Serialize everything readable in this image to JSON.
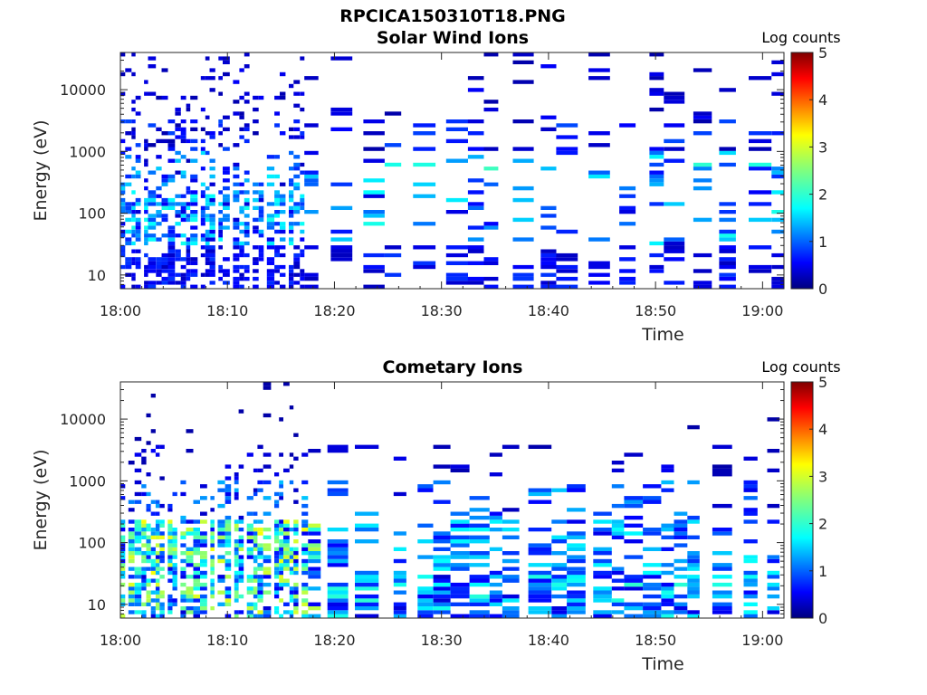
{
  "figure": {
    "title": "RPCICA150310T18.PNG"
  },
  "colors": {
    "axis": "#262626",
    "colormap": [
      "#00007f",
      "#0000ff",
      "#007fff",
      "#00ffff",
      "#7fff7f",
      "#ffff00",
      "#ff7f00",
      "#ff0000",
      "#7f0000"
    ]
  },
  "chart_data": [
    {
      "type": "heatmap",
      "title": "Solar Wind Ions",
      "xlabel": "Time",
      "ylabel": "Energy (eV)",
      "x_ticks": [
        "18:00",
        "18:10",
        "18:20",
        "18:30",
        "18:40",
        "18:50",
        "19:00"
      ],
      "y_ticks": [
        "10",
        "100",
        "1000",
        "10000"
      ],
      "y_scale": "log",
      "ylim": [
        6,
        40000
      ],
      "xlim": [
        "18:00",
        "19:02"
      ],
      "colorbar": {
        "title": "Log counts",
        "range": [
          0,
          5
        ],
        "ticks": [
          "0",
          "1",
          "2",
          "3",
          "4",
          "5"
        ]
      },
      "seed": 7,
      "profile": "solar"
    },
    {
      "type": "heatmap",
      "title": "Cometary Ions",
      "xlabel": "Time",
      "ylabel": "Energy (eV)",
      "x_ticks": [
        "18:00",
        "18:10",
        "18:20",
        "18:30",
        "18:40",
        "18:50",
        "19:00"
      ],
      "y_ticks": [
        "10",
        "100",
        "1000",
        "10000"
      ],
      "y_scale": "log",
      "ylim": [
        6,
        40000
      ],
      "xlim": [
        "18:00",
        "19:02"
      ],
      "colorbar": {
        "title": "Log counts",
        "range": [
          0,
          5
        ],
        "ticks": [
          "0",
          "1",
          "2",
          "3",
          "4",
          "5"
        ]
      },
      "seed": 23,
      "profile": "cometary"
    }
  ]
}
